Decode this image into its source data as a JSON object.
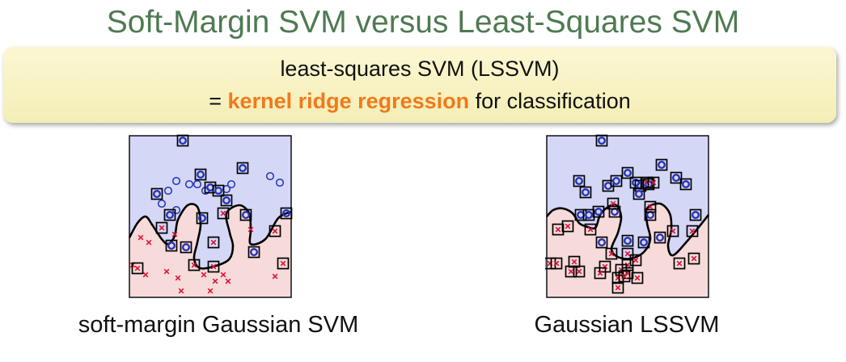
{
  "slide": {
    "title": "Soft-Margin SVM versus Least-Squares SVM",
    "box": {
      "line1": "least-squares SVM (LSSVM)",
      "line2_prefix": "= ",
      "line2_highlight": "kernel ridge regression",
      "line2_suffix": " for classification"
    },
    "captions": {
      "left": "soft-margin Gaussian SVM",
      "right": "Gaussian LSSVM"
    }
  },
  "colors": {
    "title": "#4f7a52",
    "highlight": "#f07a1b",
    "positive_region": "#d5d7f6",
    "negative_region": "#f7dada",
    "circle": "#2233bb",
    "cross": "#dd1133"
  },
  "chart_data": [
    {
      "type": "scatter",
      "xlim": [
        0,
        1
      ],
      "ylim": [
        0,
        1
      ],
      "boundary": [
        [
          0,
          0.37
        ],
        [
          0.05,
          0.46
        ],
        [
          0.1,
          0.5
        ],
        [
          0.14,
          0.45
        ],
        [
          0.2,
          0.36
        ],
        [
          0.24,
          0.33
        ],
        [
          0.28,
          0.38
        ],
        [
          0.3,
          0.48
        ],
        [
          0.36,
          0.57
        ],
        [
          0.42,
          0.56
        ],
        [
          0.44,
          0.45
        ],
        [
          0.42,
          0.34
        ],
        [
          0.4,
          0.24
        ],
        [
          0.44,
          0.18
        ],
        [
          0.55,
          0.2
        ],
        [
          0.62,
          0.24
        ],
        [
          0.64,
          0.32
        ],
        [
          0.62,
          0.4
        ],
        [
          0.6,
          0.52
        ],
        [
          0.68,
          0.57
        ],
        [
          0.74,
          0.52
        ],
        [
          0.75,
          0.42
        ],
        [
          0.75,
          0.33
        ],
        [
          0.84,
          0.36
        ],
        [
          0.92,
          0.49
        ],
        [
          1,
          0.53
        ]
      ],
      "sv_circles": [
        [
          0.33,
          0.97
        ],
        [
          0.7,
          0.8
        ],
        [
          0.44,
          0.76
        ],
        [
          0.5,
          0.68
        ],
        [
          0.55,
          0.66
        ],
        [
          0.17,
          0.64
        ],
        [
          0.6,
          0.6
        ],
        [
          0.25,
          0.51
        ],
        [
          0.45,
          0.49
        ],
        [
          0.26,
          0.32
        ],
        [
          0.35,
          0.31
        ],
        [
          0.77,
          0.28
        ],
        [
          0.97,
          0.52
        ],
        [
          0.72,
          0.51
        ]
      ],
      "sv_crosses": [
        [
          0.2,
          0.43
        ],
        [
          0.58,
          0.52
        ],
        [
          0.9,
          0.41
        ],
        [
          0.52,
          0.34
        ],
        [
          0.4,
          0.2
        ],
        [
          0.52,
          0.19
        ],
        [
          0.95,
          0.21
        ],
        [
          0.05,
          0.18
        ]
      ],
      "circles": [
        [
          0.29,
          0.72
        ],
        [
          0.37,
          0.7
        ],
        [
          0.42,
          0.7
        ],
        [
          0.47,
          0.66
        ],
        [
          0.24,
          0.66
        ],
        [
          0.6,
          0.67
        ],
        [
          0.63,
          0.7
        ],
        [
          0.87,
          0.75
        ],
        [
          0.93,
          0.71
        ],
        [
          0.2,
          0.58
        ],
        [
          0.29,
          0.54
        ]
      ],
      "crosses": [
        [
          0.07,
          0.37
        ],
        [
          0.12,
          0.34
        ],
        [
          0.28,
          0.39
        ],
        [
          0.75,
          0.42
        ],
        [
          0.02,
          0.2
        ],
        [
          0.1,
          0.14
        ],
        [
          0.23,
          0.16
        ],
        [
          0.3,
          0.12
        ],
        [
          0.46,
          0.14
        ],
        [
          0.53,
          0.1
        ],
        [
          0.58,
          0.14
        ],
        [
          0.61,
          0.1
        ],
        [
          0.9,
          0.13
        ],
        [
          0.5,
          0.04
        ],
        [
          0.32,
          0.04
        ]
      ]
    },
    {
      "type": "scatter",
      "xlim": [
        0,
        1
      ],
      "ylim": [
        0,
        1
      ],
      "boundary": [
        [
          0,
          0.5
        ],
        [
          0.04,
          0.54
        ],
        [
          0.1,
          0.55
        ],
        [
          0.16,
          0.52
        ],
        [
          0.2,
          0.46
        ],
        [
          0.24,
          0.44
        ],
        [
          0.3,
          0.43
        ],
        [
          0.33,
          0.51
        ],
        [
          0.38,
          0.56
        ],
        [
          0.43,
          0.57
        ],
        [
          0.46,
          0.5
        ],
        [
          0.44,
          0.4
        ],
        [
          0.4,
          0.3
        ],
        [
          0.44,
          0.25
        ],
        [
          0.52,
          0.24
        ],
        [
          0.6,
          0.28
        ],
        [
          0.64,
          0.36
        ],
        [
          0.62,
          0.46
        ],
        [
          0.62,
          0.55
        ],
        [
          0.7,
          0.58
        ],
        [
          0.76,
          0.52
        ],
        [
          0.77,
          0.42
        ],
        [
          0.75,
          0.32
        ],
        [
          0.78,
          0.26
        ],
        [
          0.87,
          0.35
        ],
        [
          1,
          0.51
        ]
      ],
      "sv_circles": [
        [
          0.34,
          0.97
        ],
        [
          0.71,
          0.82
        ],
        [
          0.5,
          0.77
        ],
        [
          0.55,
          0.71
        ],
        [
          0.58,
          0.69
        ],
        [
          0.38,
          0.69
        ],
        [
          0.43,
          0.72
        ],
        [
          0.2,
          0.72
        ],
        [
          0.63,
          0.7
        ],
        [
          0.8,
          0.74
        ],
        [
          0.86,
          0.7
        ],
        [
          0.24,
          0.65
        ],
        [
          0.57,
          0.64
        ],
        [
          0.32,
          0.53
        ],
        [
          0.42,
          0.53
        ],
        [
          0.21,
          0.51
        ],
        [
          0.26,
          0.51
        ],
        [
          0.34,
          0.34
        ],
        [
          0.5,
          0.35
        ],
        [
          0.6,
          0.34
        ],
        [
          0.7,
          0.37
        ],
        [
          0.92,
          0.51
        ],
        [
          0.64,
          0.51
        ]
      ],
      "sv_crosses": [
        [
          0.62,
          0.71
        ],
        [
          0.66,
          0.71
        ],
        [
          0.41,
          0.58
        ],
        [
          0.64,
          0.56
        ],
        [
          0.07,
          0.42
        ],
        [
          0.13,
          0.44
        ],
        [
          0.27,
          0.42
        ],
        [
          0.78,
          0.41
        ],
        [
          0.9,
          0.41
        ],
        [
          0.4,
          0.27
        ],
        [
          0.5,
          0.27
        ],
        [
          0.55,
          0.23
        ],
        [
          0.91,
          0.24
        ],
        [
          0.82,
          0.21
        ],
        [
          0.36,
          0.19
        ],
        [
          0.5,
          0.2
        ],
        [
          0.02,
          0.21
        ],
        [
          0.06,
          0.21
        ],
        [
          0.17,
          0.22
        ],
        [
          0.46,
          0.17
        ],
        [
          0.5,
          0.15
        ],
        [
          0.56,
          0.12
        ],
        [
          0.44,
          0.12
        ],
        [
          0.48,
          0.13
        ],
        [
          0.44,
          0.06
        ],
        [
          0.33,
          0.15
        ],
        [
          0.2,
          0.16
        ],
        [
          0.15,
          0.16
        ]
      ],
      "circles": [],
      "crosses": []
    }
  ]
}
